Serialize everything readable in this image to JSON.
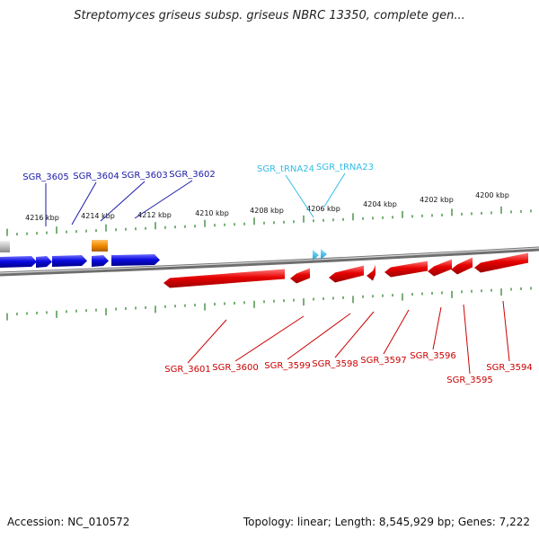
{
  "title": "Streptomyces griseus subsp. griseus NBRC 13350, complete gen...",
  "footer": {
    "accession": "Accession: NC_010572",
    "summary": "Topology: linear; Length: 8,545,929 bp; Genes: 7,222"
  },
  "colors": {
    "forward_gene": "#0b0be0",
    "reverse_gene": "#e60000",
    "trna": "#33bde6",
    "other": "#f08a00",
    "pseudo": "#bdbdbd",
    "forward_label": "#1a1aa8",
    "reverse_label": "#cc0000",
    "trna_label": "#33bde6",
    "tick": "#1e7a1e",
    "backbone": "#8c8c8c"
  },
  "ticks": [
    {
      "label": "4216 kbp"
    },
    {
      "label": "4214 kbp"
    },
    {
      "label": "4212 kbp"
    },
    {
      "label": "4210 kbp"
    },
    {
      "label": "4208 kbp"
    },
    {
      "label": "4206 kbp"
    },
    {
      "label": "4204 kbp"
    },
    {
      "label": "4202 kbp"
    },
    {
      "label": "4200 kbp"
    }
  ],
  "forward_genes": [
    {
      "name": "SGR_3605"
    },
    {
      "name": "SGR_3604"
    },
    {
      "name": "SGR_3603"
    },
    {
      "name": "SGR_3602"
    }
  ],
  "trna_genes": [
    {
      "name": "SGR_tRNA24"
    },
    {
      "name": "SGR_tRNA23"
    }
  ],
  "reverse_genes": [
    {
      "name": "SGR_3601"
    },
    {
      "name": "SGR_3600"
    },
    {
      "name": "SGR_3599"
    },
    {
      "name": "SGR_3598"
    },
    {
      "name": "SGR_3597"
    },
    {
      "name": "SGR_3596"
    },
    {
      "name": "SGR_3595"
    },
    {
      "name": "SGR_3594"
    }
  ]
}
